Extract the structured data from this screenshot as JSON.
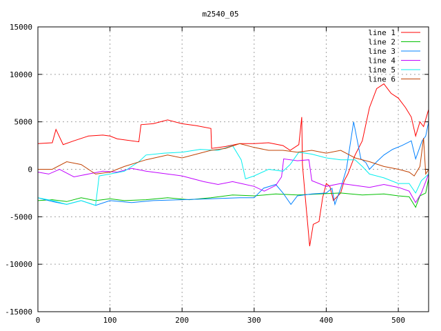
{
  "chart_data": {
    "type": "line",
    "title": "m2540_05",
    "xlabel": "",
    "ylabel": "",
    "xlim": [
      0,
      542
    ],
    "ylim": [
      -15000,
      15000
    ],
    "xticks": [
      0,
      100,
      200,
      300,
      400,
      500
    ],
    "yticks": [
      -15000,
      -10000,
      -5000,
      0,
      5000,
      10000,
      15000
    ],
    "grid": true,
    "legend_position": "top-right",
    "series": [
      {
        "name": "line 1",
        "color": "#ff0000",
        "points": [
          [
            0,
            2700
          ],
          [
            20,
            2800
          ],
          [
            25,
            4200
          ],
          [
            35,
            2600
          ],
          [
            50,
            3000
          ],
          [
            70,
            3500
          ],
          [
            90,
            3600
          ],
          [
            100,
            3500
          ],
          [
            110,
            3200
          ],
          [
            140,
            2900
          ],
          [
            143,
            4700
          ],
          [
            160,
            4800
          ],
          [
            180,
            5200
          ],
          [
            200,
            4800
          ],
          [
            220,
            4600
          ],
          [
            240,
            4300
          ],
          [
            241,
            2200
          ],
          [
            260,
            2400
          ],
          [
            280,
            2700
          ],
          [
            300,
            2700
          ],
          [
            320,
            2800
          ],
          [
            340,
            2500
          ],
          [
            350,
            2000
          ],
          [
            362,
            2600
          ],
          [
            366,
            5500
          ],
          [
            367,
            500
          ],
          [
            371,
            -3000
          ],
          [
            377,
            -8100
          ],
          [
            382,
            -5800
          ],
          [
            390,
            -5500
          ],
          [
            395,
            -3000
          ],
          [
            400,
            -1500
          ],
          [
            405,
            -1800
          ],
          [
            410,
            -3300
          ],
          [
            420,
            -2500
          ],
          [
            425,
            -1200
          ],
          [
            430,
            -500
          ],
          [
            440,
            1500
          ],
          [
            450,
            3000
          ],
          [
            460,
            6500
          ],
          [
            470,
            8500
          ],
          [
            480,
            9000
          ],
          [
            490,
            8000
          ],
          [
            500,
            7500
          ],
          [
            510,
            6500
          ],
          [
            518,
            5500
          ],
          [
            524,
            3500
          ],
          [
            530,
            5000
          ],
          [
            535,
            4500
          ],
          [
            542,
            6300
          ]
        ]
      },
      {
        "name": "line 2",
        "color": "#00c000",
        "points": [
          [
            0,
            -3300
          ],
          [
            20,
            -3200
          ],
          [
            40,
            -3400
          ],
          [
            60,
            -3000
          ],
          [
            80,
            -3300
          ],
          [
            100,
            -3100
          ],
          [
            120,
            -3300
          ],
          [
            150,
            -3200
          ],
          [
            180,
            -3000
          ],
          [
            210,
            -3200
          ],
          [
            240,
            -3000
          ],
          [
            270,
            -2700
          ],
          [
            300,
            -2800
          ],
          [
            330,
            -2600
          ],
          [
            360,
            -2700
          ],
          [
            390,
            -2600
          ],
          [
            420,
            -2500
          ],
          [
            450,
            -2700
          ],
          [
            480,
            -2600
          ],
          [
            500,
            -2800
          ],
          [
            515,
            -2900
          ],
          [
            524,
            -4000
          ],
          [
            530,
            -2800
          ],
          [
            538,
            -2500
          ],
          [
            542,
            -1000
          ]
        ]
      },
      {
        "name": "line 3",
        "color": "#0080ff",
        "points": [
          [
            0,
            -3000
          ],
          [
            20,
            -3400
          ],
          [
            40,
            -3700
          ],
          [
            60,
            -3300
          ],
          [
            80,
            -3800
          ],
          [
            100,
            -3300
          ],
          [
            130,
            -3500
          ],
          [
            160,
            -3300
          ],
          [
            200,
            -3200
          ],
          [
            240,
            -3100
          ],
          [
            280,
            -3000
          ],
          [
            300,
            -3000
          ],
          [
            313,
            -2000
          ],
          [
            330,
            -1600
          ],
          [
            340,
            -2500
          ],
          [
            351,
            -3700
          ],
          [
            360,
            -2800
          ],
          [
            380,
            -2600
          ],
          [
            400,
            -2500
          ],
          [
            408,
            -2000
          ],
          [
            412,
            -3700
          ],
          [
            420,
            -2000
          ],
          [
            428,
            0
          ],
          [
            438,
            5000
          ],
          [
            448,
            1100
          ],
          [
            455,
            700
          ],
          [
            460,
            0
          ],
          [
            470,
            800
          ],
          [
            480,
            1500
          ],
          [
            492,
            2100
          ],
          [
            505,
            2500
          ],
          [
            518,
            3000
          ],
          [
            524,
            1100
          ],
          [
            533,
            3000
          ],
          [
            538,
            3500
          ],
          [
            542,
            5000
          ]
        ]
      },
      {
        "name": "line 4",
        "color": "#c000ff",
        "points": [
          [
            0,
            -300
          ],
          [
            15,
            -500
          ],
          [
            30,
            0
          ],
          [
            50,
            -800
          ],
          [
            70,
            -500
          ],
          [
            90,
            -200
          ],
          [
            110,
            -300
          ],
          [
            130,
            100
          ],
          [
            150,
            -200
          ],
          [
            180,
            -500
          ],
          [
            200,
            -700
          ],
          [
            230,
            -1300
          ],
          [
            250,
            -1600
          ],
          [
            270,
            -1300
          ],
          [
            282,
            -1500
          ],
          [
            300,
            -1800
          ],
          [
            314,
            -2300
          ],
          [
            330,
            -1700
          ],
          [
            338,
            -800
          ],
          [
            341,
            1100
          ],
          [
            360,
            900
          ],
          [
            376,
            1000
          ],
          [
            380,
            -1200
          ],
          [
            400,
            -1800
          ],
          [
            420,
            -1500
          ],
          [
            440,
            -1700
          ],
          [
            460,
            -1900
          ],
          [
            480,
            -1600
          ],
          [
            500,
            -1900
          ],
          [
            515,
            -2300
          ],
          [
            524,
            -3500
          ],
          [
            532,
            -2500
          ],
          [
            542,
            -500
          ]
        ]
      },
      {
        "name": "line 5",
        "color": "#00eeee",
        "points": [
          [
            0,
            -3000
          ],
          [
            20,
            -3300
          ],
          [
            40,
            -3700
          ],
          [
            60,
            -3300
          ],
          [
            80,
            -3800
          ],
          [
            85,
            -700
          ],
          [
            100,
            -500
          ],
          [
            120,
            -200
          ],
          [
            140,
            800
          ],
          [
            150,
            1500
          ],
          [
            175,
            1700
          ],
          [
            200,
            1800
          ],
          [
            225,
            2100
          ],
          [
            250,
            2000
          ],
          [
            270,
            2500
          ],
          [
            282,
            1000
          ],
          [
            288,
            -1000
          ],
          [
            300,
            -700
          ],
          [
            320,
            0
          ],
          [
            340,
            -200
          ],
          [
            350,
            500
          ],
          [
            362,
            1800
          ],
          [
            380,
            1600
          ],
          [
            400,
            1200
          ],
          [
            420,
            1000
          ],
          [
            440,
            1000
          ],
          [
            450,
            300
          ],
          [
            460,
            -500
          ],
          [
            480,
            -900
          ],
          [
            500,
            -1500
          ],
          [
            515,
            -1500
          ],
          [
            524,
            -2500
          ],
          [
            532,
            -1200
          ],
          [
            542,
            -500
          ]
        ]
      },
      {
        "name": "line 6",
        "color": "#c04000",
        "points": [
          [
            0,
            0
          ],
          [
            20,
            0
          ],
          [
            40,
            800
          ],
          [
            60,
            500
          ],
          [
            80,
            -500
          ],
          [
            100,
            -300
          ],
          [
            120,
            300
          ],
          [
            150,
            1000
          ],
          [
            180,
            1500
          ],
          [
            200,
            1200
          ],
          [
            220,
            1600
          ],
          [
            240,
            2000
          ],
          [
            260,
            2200
          ],
          [
            280,
            2700
          ],
          [
            300,
            2300
          ],
          [
            320,
            2000
          ],
          [
            340,
            2000
          ],
          [
            360,
            1800
          ],
          [
            380,
            2000
          ],
          [
            400,
            1700
          ],
          [
            420,
            2000
          ],
          [
            440,
            1200
          ],
          [
            460,
            800
          ],
          [
            480,
            300
          ],
          [
            500,
            0
          ],
          [
            515,
            -300
          ],
          [
            522,
            -700
          ],
          [
            530,
            300
          ],
          [
            535,
            3300
          ],
          [
            538,
            -500
          ],
          [
            542,
            0
          ]
        ]
      }
    ]
  }
}
